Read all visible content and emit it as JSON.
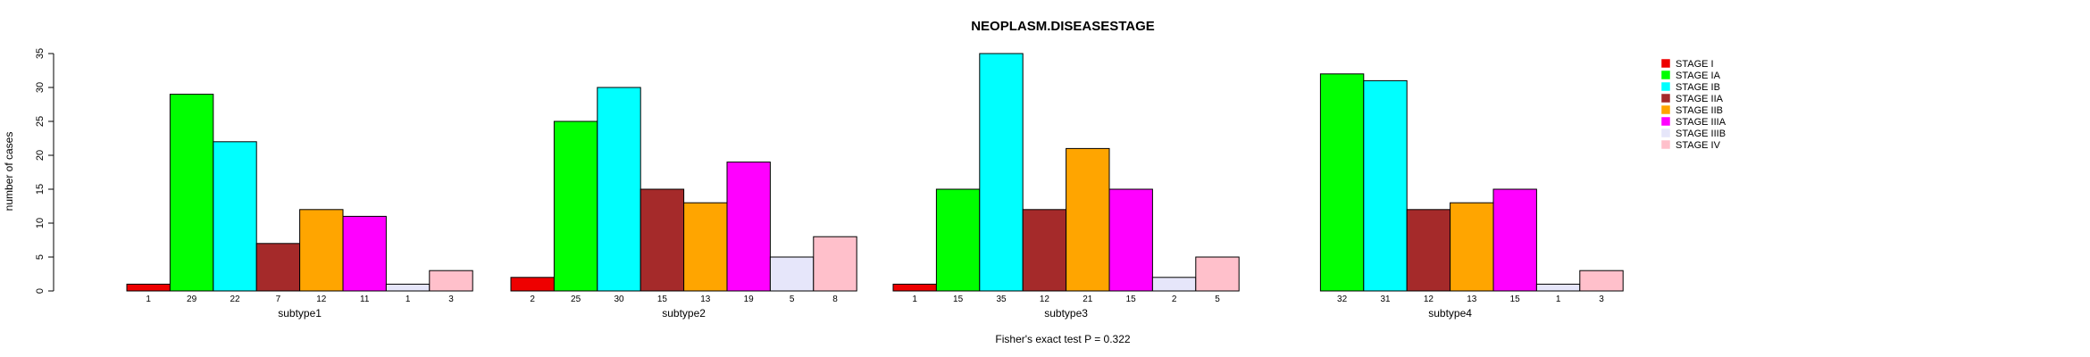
{
  "chart_data": {
    "type": "bar",
    "title": "NEOPLASM.DISEASESTAGE",
    "ylabel": "number of cases",
    "xlabel": "",
    "ylim": [
      0,
      35
    ],
    "yticks": [
      0,
      5,
      10,
      15,
      20,
      25,
      30,
      35
    ],
    "footer": "Fisher's exact test P = 0.322",
    "legend_position": "top-right",
    "legend": [
      {
        "label": "STAGE I",
        "color": "#ee0000"
      },
      {
        "label": "STAGE IA",
        "color": "#00ff00"
      },
      {
        "label": "STAGE IB",
        "color": "#00ffff"
      },
      {
        "label": "STAGE IIA",
        "color": "#a52a2a"
      },
      {
        "label": "STAGE IIB",
        "color": "#ffa500"
      },
      {
        "label": "STAGE IIIA",
        "color": "#ff00ff"
      },
      {
        "label": "STAGE IIIB",
        "color": "#e6e6fa"
      },
      {
        "label": "STAGE IV",
        "color": "#ffc0cb"
      }
    ],
    "groups": [
      {
        "name": "subtype1",
        "values": [
          1,
          29,
          22,
          7,
          12,
          11,
          1,
          3
        ]
      },
      {
        "name": "subtype2",
        "values": [
          2,
          25,
          30,
          15,
          13,
          19,
          5,
          8
        ]
      },
      {
        "name": "subtype3",
        "values": [
          1,
          15,
          35,
          12,
          21,
          15,
          2,
          5
        ]
      },
      {
        "name": "subtype4",
        "values": [
          0,
          32,
          31,
          12,
          13,
          15,
          1,
          3
        ]
      }
    ]
  }
}
